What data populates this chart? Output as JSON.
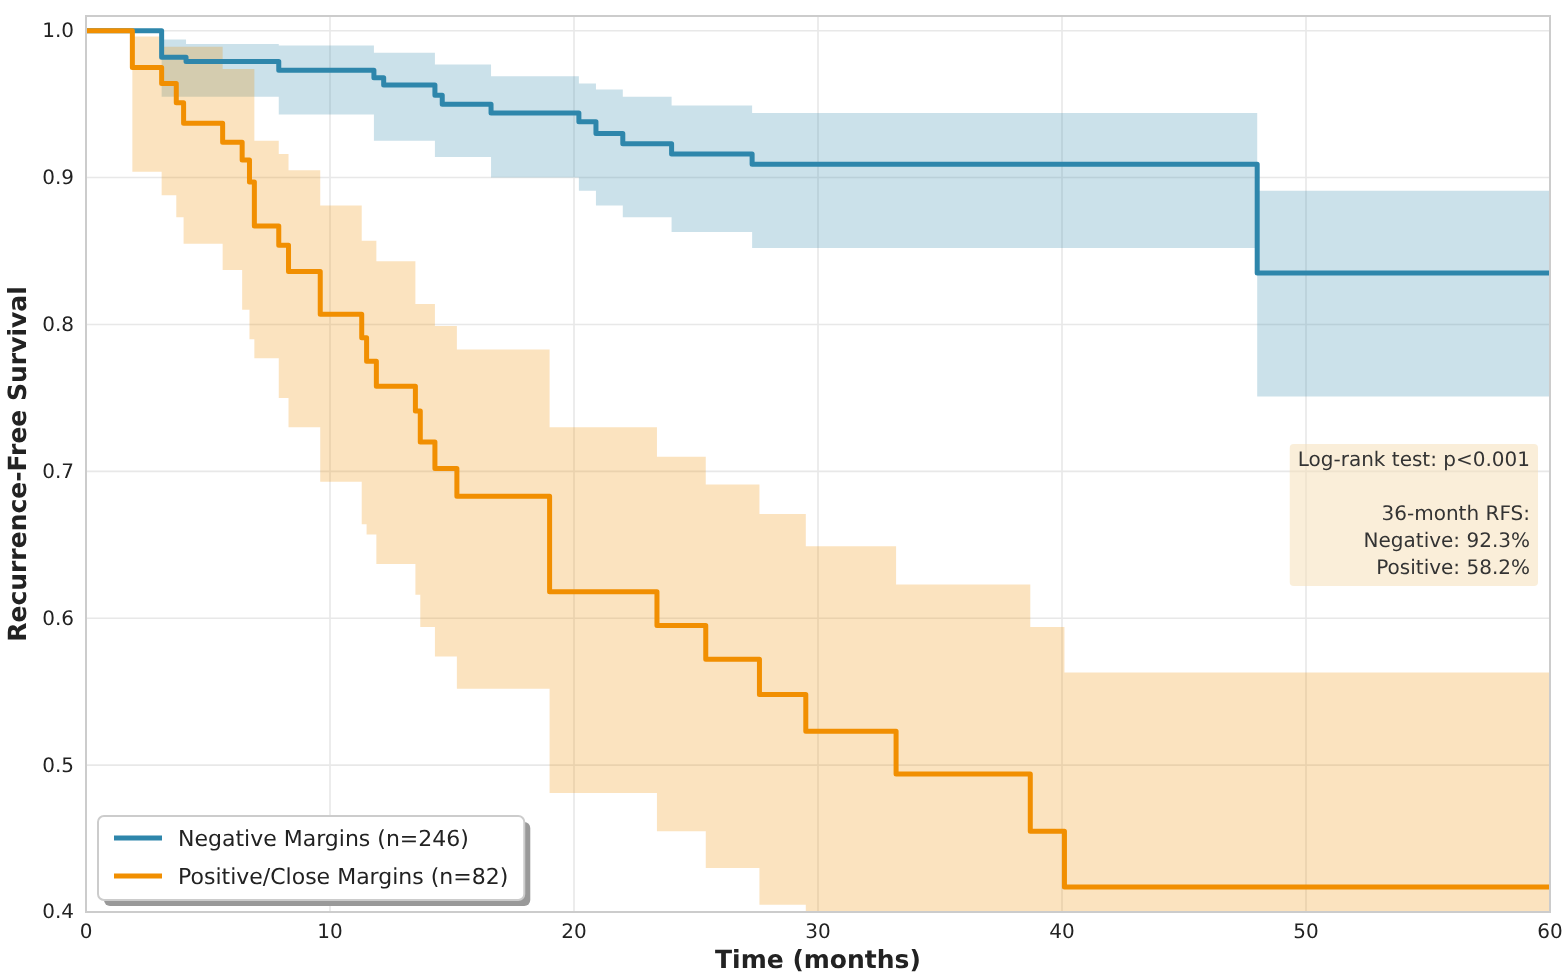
{
  "chart_data": {
    "type": "step",
    "xlabel": "Time (months)",
    "ylabel": "Recurrence-Free Survival",
    "xlim": [
      0,
      60
    ],
    "ylim": [
      0.4,
      1.01
    ],
    "xticks": [
      0,
      10,
      20,
      30,
      40,
      50,
      60
    ],
    "yticks": [
      0.4,
      0.5,
      0.6,
      0.7,
      0.8,
      0.9,
      {
        "value": 1,
        "label": "1.0"
      }
    ],
    "grid": true,
    "legend": "bottom left",
    "annotations": [
      "Log-rank test: p<0.001\n\n36-month RFS:\nNegative: 92.3%\nPositive: 58.2%"
    ],
    "series": [
      {
        "name": "Negative Margins (n=246)",
        "color": "#2e86ab",
        "x": [
          0,
          3.1,
          4.1,
          7.9,
          11.8,
          12.2,
          14.3,
          14.6,
          16.6,
          20.2,
          20.9,
          22.0,
          24.0,
          27.3,
          48.0,
          60
        ],
        "values": [
          1.0,
          0.982,
          0.979,
          0.973,
          0.968,
          0.963,
          0.956,
          0.95,
          0.944,
          0.938,
          0.93,
          0.923,
          0.916,
          0.909,
          0.835,
          0.835
        ],
        "lower": [
          1.0,
          0.955,
          0.955,
          0.943,
          0.925,
          0.925,
          0.914,
          0.914,
          0.9,
          0.891,
          0.881,
          0.873,
          0.863,
          0.852,
          0.751,
          0.751
        ],
        "upper": [
          1.0,
          0.994,
          0.991,
          0.99,
          0.985,
          0.985,
          0.977,
          0.977,
          0.969,
          0.964,
          0.96,
          0.955,
          0.949,
          0.944,
          0.891,
          0.891
        ]
      },
      {
        "name": "Positive/Close Margins (n=82)",
        "color": "#f18f01",
        "x": [
          0,
          1.9,
          3.1,
          3.7,
          4.0,
          5.6,
          6.4,
          6.7,
          6.9,
          7.9,
          8.3,
          9.6,
          11.3,
          11.5,
          11.9,
          13.5,
          13.7,
          14.3,
          15.2,
          19.0,
          23.4,
          25.4,
          27.6,
          29.5,
          33.2,
          38.7,
          40.1,
          60
        ],
        "values": [
          1.0,
          0.975,
          0.964,
          0.951,
          0.937,
          0.924,
          0.912,
          0.897,
          0.867,
          0.854,
          0.836,
          0.807,
          0.791,
          0.775,
          0.758,
          0.741,
          0.72,
          0.702,
          0.683,
          0.618,
          0.595,
          0.572,
          0.548,
          0.523,
          0.494,
          0.455,
          0.417,
          0.417
        ],
        "lower": [
          1.0,
          0.904,
          0.888,
          0.873,
          0.855,
          0.837,
          0.81,
          0.79,
          0.777,
          0.75,
          0.73,
          0.693,
          0.664,
          0.657,
          0.637,
          0.616,
          0.594,
          0.574,
          0.552,
          0.481,
          0.455,
          0.43,
          0.405,
          0.4,
          0.4,
          0.4,
          0.4,
          0.4
        ],
        "upper": [
          1.0,
          0.996,
          0.989,
          0.989,
          0.989,
          0.974,
          0.974,
          0.974,
          0.925,
          0.916,
          0.905,
          0.881,
          0.857,
          0.857,
          0.843,
          0.814,
          0.814,
          0.799,
          0.783,
          0.73,
          0.71,
          0.691,
          0.671,
          0.649,
          0.623,
          0.594,
          0.563,
          0.563
        ]
      }
    ]
  }
}
